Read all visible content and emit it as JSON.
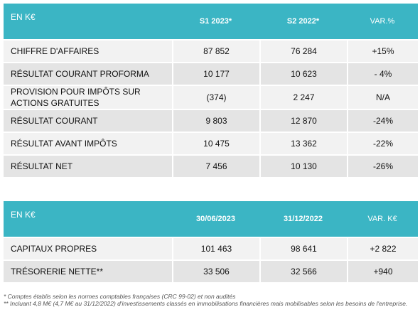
{
  "tables": [
    {
      "header": [
        "EN K€",
        "S1 2023*",
        "S2 2022*",
        "VAR.%"
      ],
      "rows": [
        [
          "CHIFFRE D'AFFAIRES",
          "87 852",
          "76 284",
          "+15%"
        ],
        [
          "RÉSULTAT COURANT PROFORMA",
          "10 177",
          "10 623",
          "- 4%"
        ],
        [
          "PROVISION POUR IMPÔTS SUR ACTIONS GRATUITES",
          "(374)",
          "2 247",
          "N/A"
        ],
        [
          "RÉSULTAT COURANT",
          "9 803",
          "12 870",
          "-24%"
        ],
        [
          "RÉSULTAT AVANT IMPÔTS",
          "10 475",
          "13 362",
          "-22%"
        ],
        [
          "RÉSULTAT NET",
          "7 456",
          "10 130",
          "-26%"
        ]
      ]
    },
    {
      "header": [
        "EN K€",
        "30/06/2023",
        "31/12/2022",
        "VAR. K€"
      ],
      "rows": [
        [
          "CAPITAUX PROPRES",
          "101 463",
          "98 641",
          "+2 822"
        ],
        [
          "TRÉSORERIE NETTE**",
          "33 506",
          "32 566",
          "+940"
        ]
      ]
    }
  ],
  "footnotes": [
    "* Comptes établis selon les normes comptables françaises (CRC 99-02) et non audités",
    "** Incluant 4,8 M€ (4,7 M€ au 31/12/2022) d'investissements classés en immobilisations financières mais mobilisables selon les besoins de l'entreprise."
  ]
}
